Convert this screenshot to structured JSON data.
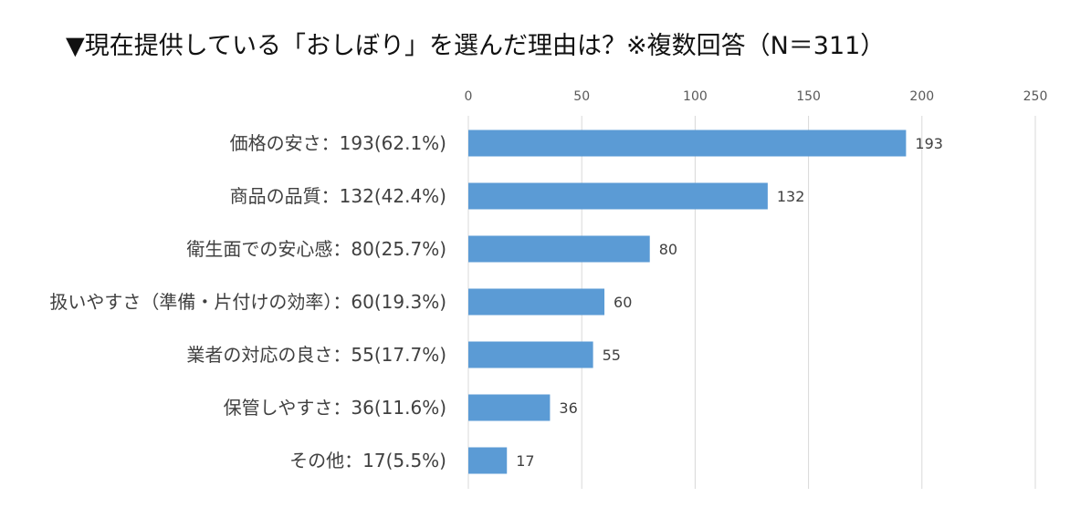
{
  "title": "▼現在提供している「おしぼり」を選んだ理由は？※複数回答（N＝311）",
  "chart_data": {
    "type": "bar",
    "orientation": "horizontal",
    "title": "▼現在提供している「おしぼり」を選んだ理由は？※複数回答（N＝311）",
    "categories": [
      "価格の安さ：193(62.1%)",
      "商品の品質：132(42.4%)",
      "衛生面での安心感：80(25.7%)",
      "扱いやすさ（準備・片付けの効率）：60(19.3%)",
      "業者の対応の良さ：55(17.7%)",
      "保管しやすさ：36(11.6%)",
      "その他：17(5.5%)"
    ],
    "values": [
      193,
      132,
      80,
      60,
      55,
      36,
      17
    ],
    "data_labels": [
      "193",
      "132",
      "80",
      "60",
      "55",
      "36",
      "17"
    ],
    "xlim": [
      0,
      250
    ],
    "x_ticks": [
      "0",
      "50",
      "100",
      "150",
      "200",
      "250"
    ],
    "x_tick_values": [
      0,
      50,
      100,
      150,
      200,
      250
    ],
    "axis_position": "top",
    "grid": true,
    "bar_color": "#5b9bd5"
  }
}
